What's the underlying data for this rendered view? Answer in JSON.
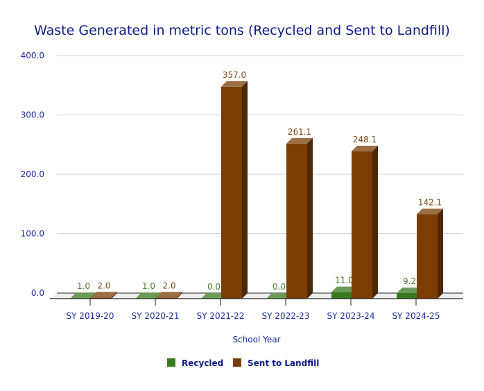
{
  "chart_data": {
    "type": "bar",
    "title": "Waste Generated in metric tons (Recycled and Sent to Landfill)",
    "xlabel": "School Year",
    "ylabel": "",
    "ylim": [
      0,
      400
    ],
    "yticks": [
      "0.0",
      "100.0",
      "200.0",
      "300.0",
      "400.0"
    ],
    "grid": true,
    "three_d": true,
    "legend_position": "bottom",
    "categories": [
      "SY 2019-20",
      "SY 2020-21",
      "SY 2021-22",
      "SY 2022-23",
      "SY 2023-24",
      "SY 2024-25"
    ],
    "series": [
      {
        "name": "Recycled",
        "values": [
          1.0,
          1.0,
          0.0,
          0.0,
          11.0,
          9.2
        ],
        "labels": [
          "1.0",
          "1.0",
          "0.0",
          "0.0",
          "11.0",
          "9.2"
        ],
        "color": "#3a7a1e"
      },
      {
        "name": "Sent to Landfill",
        "values": [
          2.0,
          2.0,
          357.0,
          261.1,
          248.1,
          142.1
        ],
        "labels": [
          "2.0",
          "2.0",
          "357.0",
          "261.1",
          "248.1",
          "142.1"
        ],
        "color": "#7a3e04"
      }
    ]
  }
}
